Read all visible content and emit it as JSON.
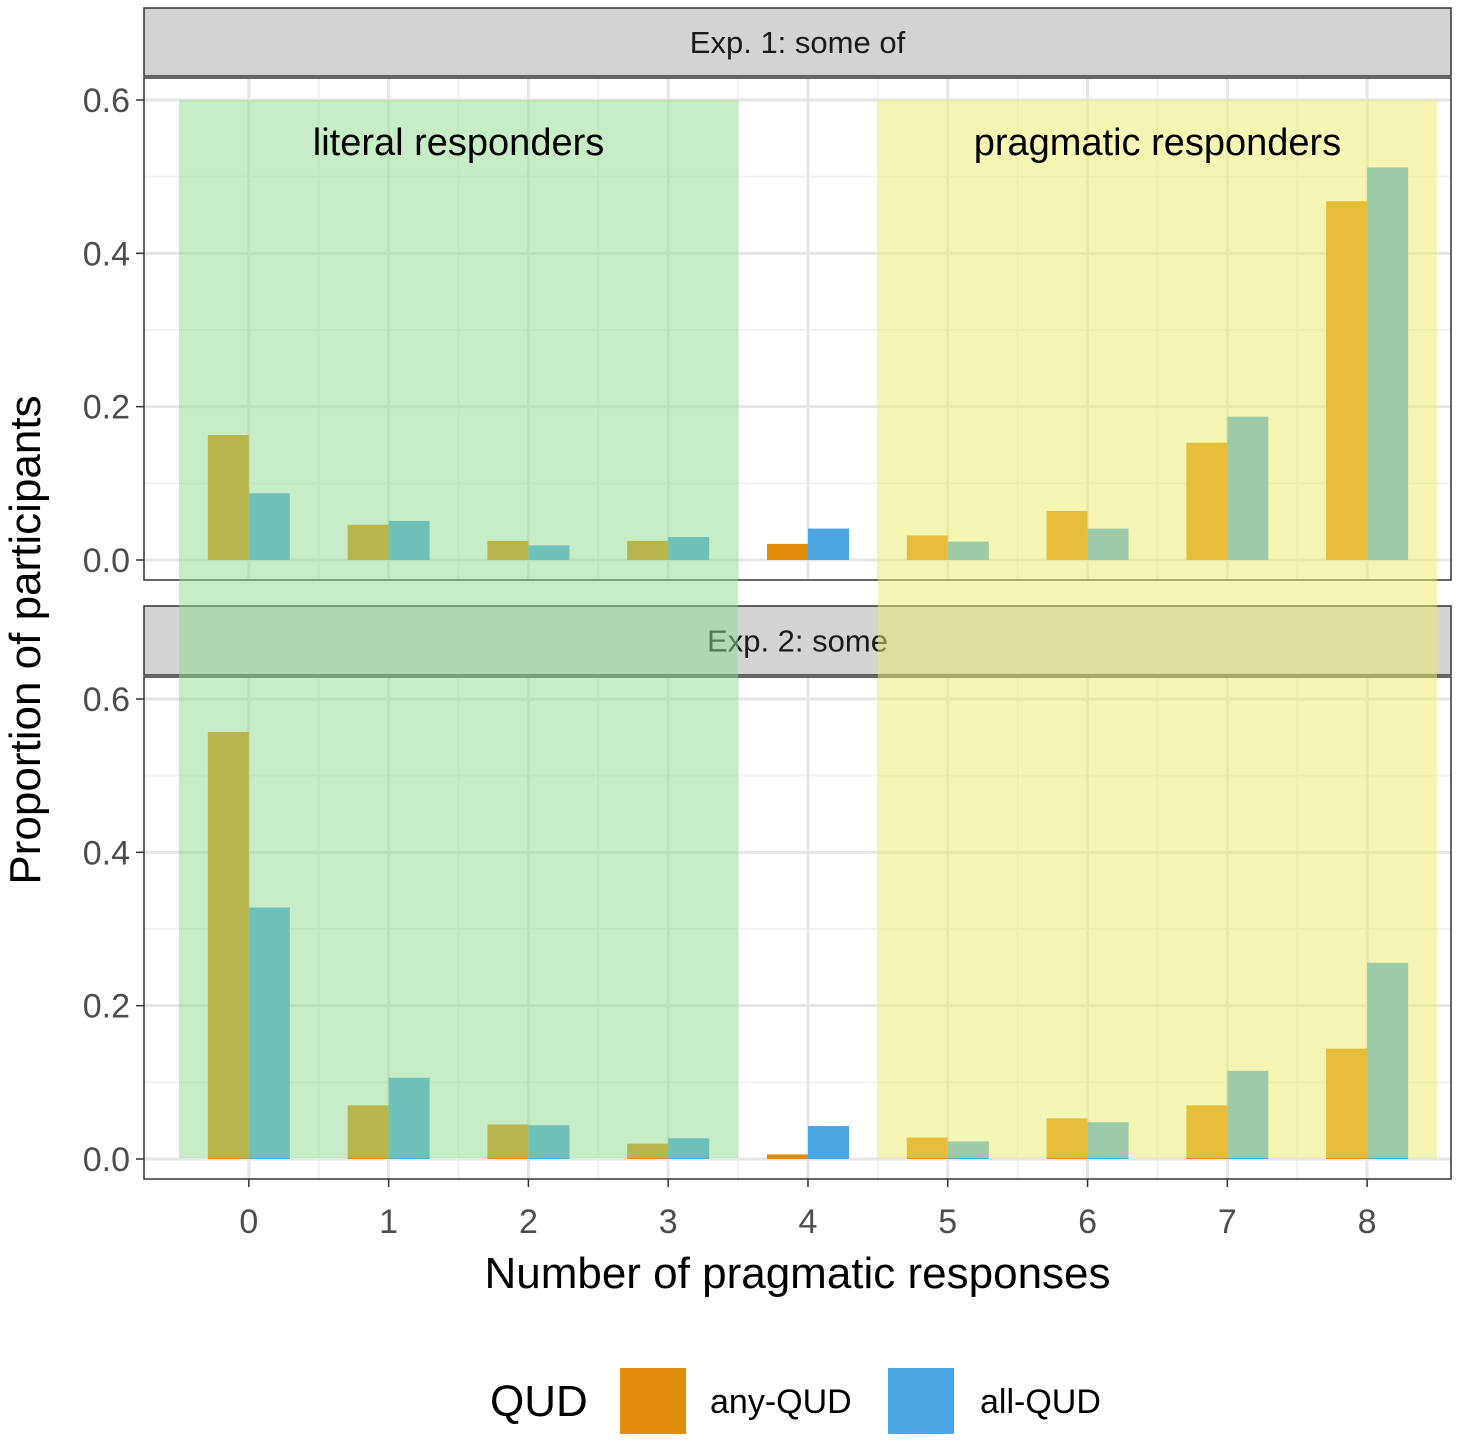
{
  "colors": {
    "any_qud": "#E08E0B",
    "all_qud": "#4CA6E4",
    "literal_band": "#8EDC8E",
    "pragmatic_band": "#EEEE6A",
    "strip_fill": "#D3D3D3",
    "grid_major": "#E6E6E6",
    "grid_minor": "#F1F1F1",
    "axis_text": "#4D4D4D"
  },
  "chart_data": {
    "type": "bar",
    "xlabel": "Number of pragmatic responses",
    "ylabel": "Proportion of participants",
    "categories": [
      "0",
      "1",
      "2",
      "3",
      "4",
      "5",
      "6",
      "7",
      "8"
    ],
    "ylim": [
      0,
      0.6
    ],
    "yticks": [
      "0.0",
      "0.2",
      "0.4",
      "0.6"
    ],
    "grid": true,
    "legend": {
      "title": "QUD",
      "position": "bottom",
      "entries": [
        "any-QUD",
        "all-QUD"
      ]
    },
    "bands": [
      {
        "label": "literal responders",
        "from_category": 0,
        "to_category": 3
      },
      {
        "label": "pragmatic responders",
        "from_category": 5,
        "to_category": 8
      }
    ],
    "panels": [
      {
        "title": "Exp. 1: some of",
        "series": [
          {
            "name": "any-QUD",
            "values": [
              0.163,
              0.046,
              0.025,
              0.025,
              0.021,
              0.032,
              0.064,
              0.153,
              0.468
            ]
          },
          {
            "name": "all-QUD",
            "values": [
              0.087,
              0.051,
              0.019,
              0.03,
              0.041,
              0.024,
              0.041,
              0.187,
              0.512
            ]
          }
        ]
      },
      {
        "title": "Exp. 2: some",
        "series": [
          {
            "name": "any-QUD",
            "values": [
              0.557,
              0.07,
              0.045,
              0.02,
              0.006,
              0.028,
              0.053,
              0.07,
              0.144
            ]
          },
          {
            "name": "all-QUD",
            "values": [
              0.328,
              0.106,
              0.044,
              0.027,
              0.043,
              0.023,
              0.048,
              0.115,
              0.256
            ]
          }
        ]
      }
    ]
  }
}
